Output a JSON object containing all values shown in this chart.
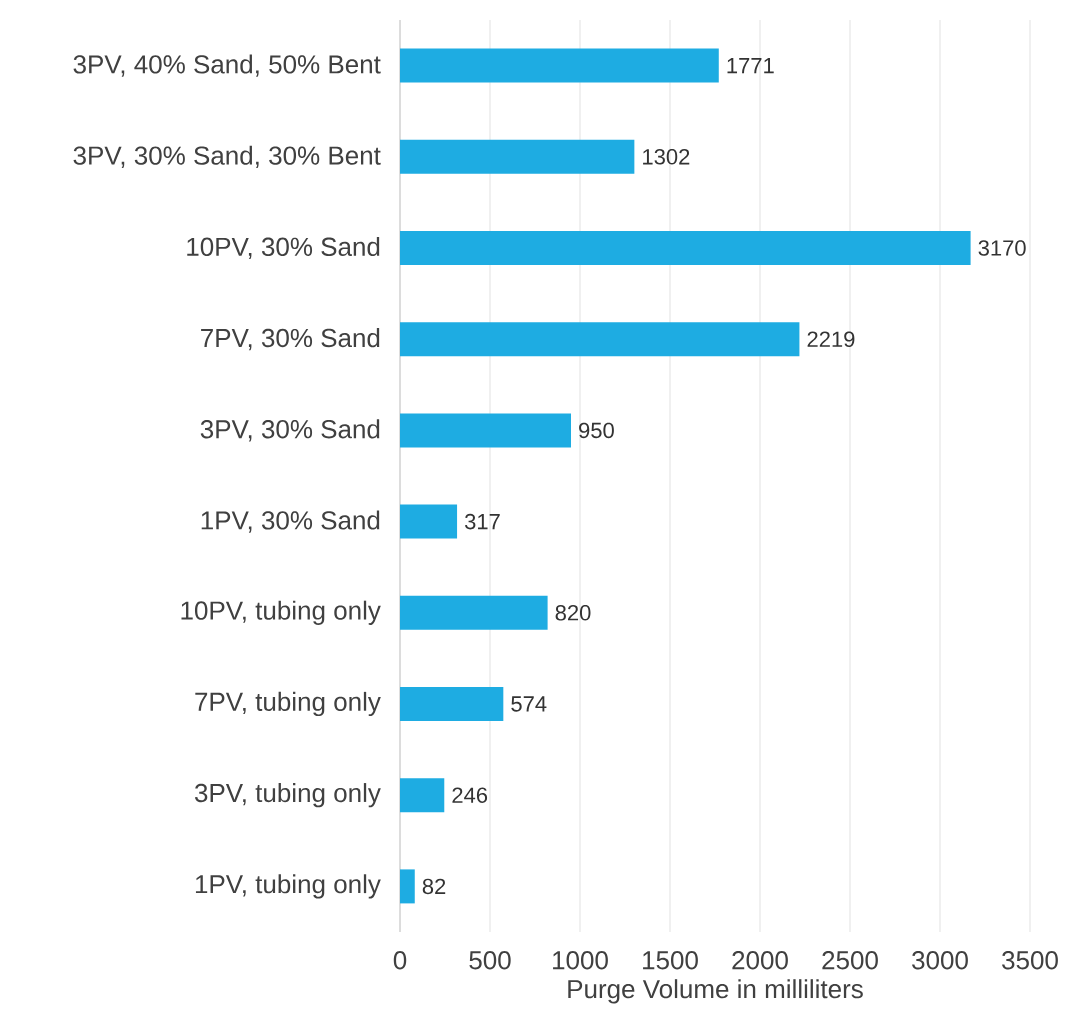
{
  "chart_data": {
    "type": "bar",
    "orientation": "horizontal",
    "xlabel": "Purge Volume in milliliters",
    "categories": [
      "3PV, 40% Sand, 50% Bent",
      "3PV,  30% Sand, 30% Bent",
      "10PV,  30% Sand",
      "7PV, 30% Sand",
      "3PV, 30% Sand",
      "1PV, 30% Sand",
      "10PV, tubing only",
      "7PV, tubing only",
      "3PV, tubing only",
      "1PV, tubing only"
    ],
    "values": [
      1771,
      1302,
      3170,
      2219,
      950,
      317,
      820,
      574,
      246,
      82
    ],
    "color": "#1eace2",
    "xlim": [
      0,
      3500
    ],
    "xticks": [
      0,
      500,
      1000,
      1500,
      2000,
      2500,
      3000,
      3500
    ],
    "grid": "x",
    "data_labels": true
  }
}
